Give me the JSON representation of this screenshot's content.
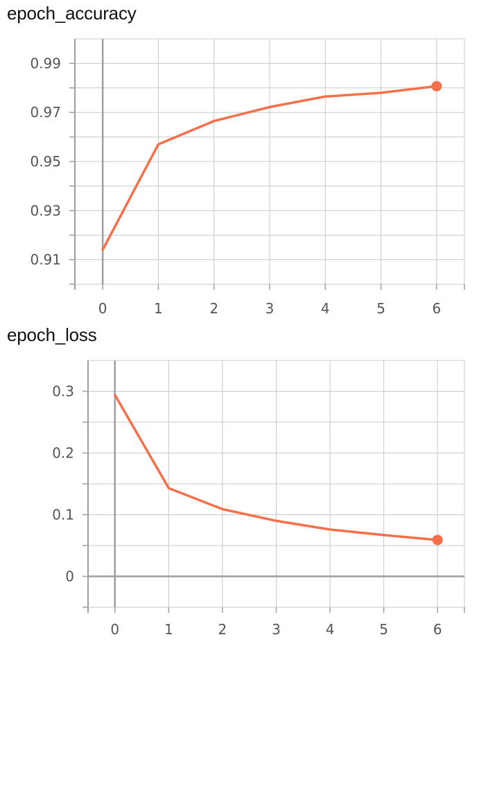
{
  "chart_data": [
    {
      "type": "line",
      "title": "epoch_accuracy",
      "xlabel": "",
      "ylabel": "",
      "x": [
        0,
        1,
        2,
        3,
        4,
        5,
        6
      ],
      "series": [
        {
          "values": [
            0.914,
            0.957,
            0.9665,
            0.9722,
            0.9765,
            0.978,
            0.9807
          ],
          "color": "#f5704a"
        }
      ],
      "xlim": [
        -0.5,
        6.5
      ],
      "ylim": [
        0.9,
        1.0
      ],
      "xticks": [
        0,
        1,
        2,
        3,
        4,
        5,
        6
      ],
      "xtick_labels": [
        "0",
        "1",
        "2",
        "3",
        "4",
        "5",
        "6"
      ],
      "yticks": [
        0.91,
        0.93,
        0.95,
        0.97,
        0.99
      ],
      "ytick_labels": [
        "0.91",
        "0.93",
        "0.95",
        "0.97",
        "0.99"
      ],
      "minor_ystep": 0.01,
      "grid": true,
      "last_point_marker": true
    },
    {
      "type": "line",
      "title": "epoch_loss",
      "xlabel": "",
      "ylabel": "",
      "x": [
        0,
        1,
        2,
        3,
        4,
        5,
        6
      ],
      "series": [
        {
          "values": [
            0.294,
            0.143,
            0.109,
            0.09,
            0.076,
            0.067,
            0.059
          ],
          "color": "#f5704a"
        }
      ],
      "xlim": [
        -0.5,
        6.5
      ],
      "ylim": [
        -0.05,
        0.35
      ],
      "xticks": [
        0,
        1,
        2,
        3,
        4,
        5,
        6
      ],
      "xtick_labels": [
        "0",
        "1",
        "2",
        "3",
        "4",
        "5",
        "6"
      ],
      "yticks": [
        0,
        0.1,
        0.2,
        0.3
      ],
      "ytick_labels": [
        "0",
        "0.1",
        "0.2",
        "0.3"
      ],
      "minor_ystep": 0.05,
      "grid": true,
      "last_point_marker": true
    }
  ]
}
